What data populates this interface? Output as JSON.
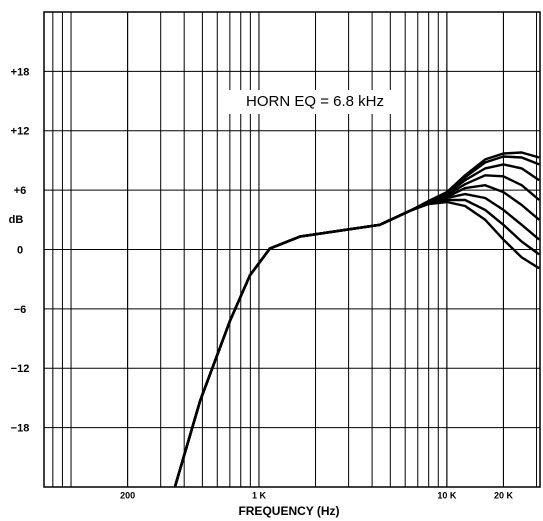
{
  "chart_data": {
    "type": "line",
    "xlabel": "FREQUENCY (Hz)",
    "ylabel": "dB",
    "annotation": "HORN EQ = 6.8 kHz",
    "xscale": "log",
    "grid": true,
    "minor_grid": true,
    "legend": false,
    "xlim": [
      71.8,
      31300
    ],
    "ylim": [
      -24,
      24
    ],
    "xticks": [
      {
        "value": 200,
        "label": "200"
      },
      {
        "value": 1000,
        "label": "1 K"
      },
      {
        "value": 10000,
        "label": "10 K"
      },
      {
        "value": 20000,
        "label": "20 K"
      }
    ],
    "yticks": [
      {
        "value": 18,
        "label": "+18"
      },
      {
        "value": 12,
        "label": "+12"
      },
      {
        "value": 6,
        "label": "+6"
      },
      0,
      {
        "value": -6,
        "label": "−6"
      },
      {
        "value": -12,
        "label": "−12"
      },
      {
        "value": -18,
        "label": "−18"
      }
    ],
    "x": [
      357,
      486,
      701,
      896,
      1144,
      1651,
      2694,
      4397,
      6351,
      8000,
      10000,
      12500,
      16000,
      20000,
      25000,
      31000
    ],
    "series": [
      {
        "color": "#000000",
        "values": [
          -24,
          -15.3,
          -7.2,
          -2.6,
          0.1,
          1.3,
          1.9,
          2.5,
          3.9,
          4.6,
          4.8,
          4.4,
          3.0,
          1.0,
          -0.8,
          -1.9
        ]
      },
      {
        "color": "#000000",
        "values": [
          -24,
          -15.3,
          -7.2,
          -2.6,
          0.1,
          1.3,
          1.9,
          2.5,
          3.9,
          4.7,
          5.0,
          5.0,
          4.0,
          2.5,
          0.8,
          -0.5
        ]
      },
      {
        "color": "#000000",
        "values": [
          -24,
          -15.3,
          -7.2,
          -2.6,
          0.1,
          1.3,
          1.9,
          2.5,
          3.9,
          4.7,
          5.2,
          5.6,
          5.2,
          4.0,
          2.5,
          1.0
        ]
      },
      {
        "color": "#000000",
        "values": [
          -24,
          -15.3,
          -7.2,
          -2.6,
          0.1,
          1.3,
          1.9,
          2.5,
          3.9,
          4.7,
          5.3,
          6.2,
          6.5,
          5.8,
          4.5,
          3.0
        ]
      },
      {
        "color": "#000000",
        "values": [
          -24,
          -15.3,
          -7.2,
          -2.6,
          0.1,
          1.3,
          1.9,
          2.5,
          3.9,
          4.8,
          5.5,
          6.6,
          7.5,
          7.4,
          6.5,
          5.0
        ]
      },
      {
        "color": "#000000",
        "values": [
          -24,
          -15.3,
          -7.2,
          -2.6,
          0.1,
          1.3,
          1.9,
          2.5,
          3.9,
          4.8,
          5.6,
          7.0,
          8.2,
          8.6,
          8.2,
          7.0
        ]
      },
      {
        "color": "#000000",
        "values": [
          -24,
          -15.3,
          -7.2,
          -2.6,
          0.1,
          1.3,
          1.9,
          2.5,
          3.9,
          4.8,
          5.7,
          7.3,
          8.8,
          9.4,
          9.3,
          8.6
        ]
      },
      {
        "color": "#000000",
        "values": [
          -24,
          -15.3,
          -7.2,
          -2.6,
          0.1,
          1.3,
          1.9,
          2.5,
          3.9,
          4.9,
          5.8,
          7.5,
          9.1,
          9.7,
          9.8,
          9.3
        ]
      }
    ]
  }
}
